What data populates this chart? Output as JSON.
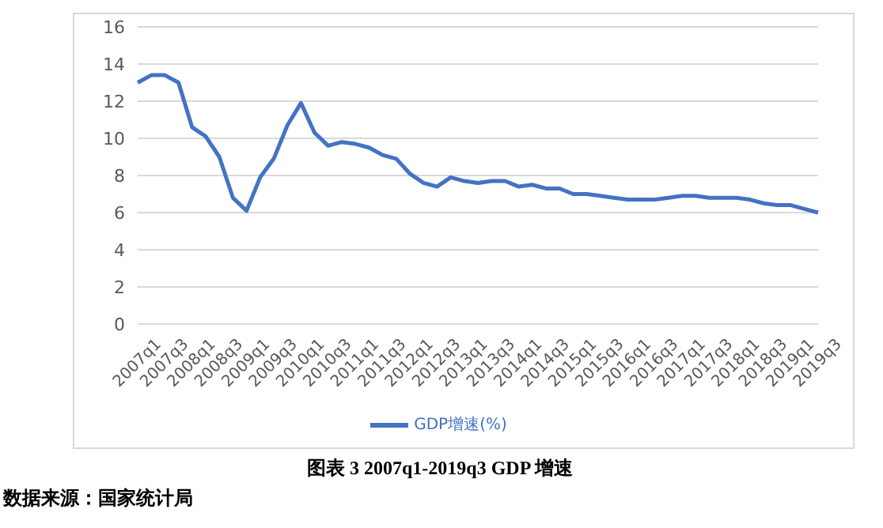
{
  "chart_data": {
    "type": "line",
    "categories": [
      "2007q1",
      null,
      "2007q3",
      null,
      "2008q1",
      null,
      "2008q3",
      null,
      "2009q1",
      null,
      "2009q3",
      null,
      "2010q1",
      null,
      "2010q3",
      null,
      "2011q1",
      null,
      "2011q3",
      null,
      "2012q1",
      null,
      "2012q3",
      null,
      "2013q1",
      null,
      "2013q3",
      null,
      "2014q1",
      null,
      "2014q3",
      null,
      "2015q1",
      null,
      "2015q3",
      null,
      "2016q1",
      null,
      "2016q3",
      null,
      "2017q1",
      null,
      "2017q3",
      null,
      "2018q1",
      null,
      "2018q3",
      null,
      "2019q1",
      null,
      "2019q3"
    ],
    "series": [
      {
        "name": "GDP增速(%)",
        "color": "#4472c4",
        "values": [
          13.0,
          13.4,
          13.4,
          13.0,
          10.6,
          10.1,
          9.0,
          6.8,
          6.1,
          7.9,
          8.9,
          10.7,
          11.9,
          10.3,
          9.6,
          9.8,
          9.7,
          9.5,
          9.1,
          8.9,
          8.1,
          7.6,
          7.4,
          7.9,
          7.7,
          7.6,
          7.7,
          7.7,
          7.4,
          7.5,
          7.3,
          7.3,
          7.0,
          7.0,
          6.9,
          6.8,
          6.7,
          6.7,
          6.7,
          6.8,
          6.9,
          6.9,
          6.8,
          6.8,
          6.8,
          6.7,
          6.5,
          6.4,
          6.4,
          6.2,
          6.0
        ]
      }
    ],
    "ylim": [
      0,
      16
    ],
    "yticks": [
      0,
      2,
      4,
      6,
      8,
      10,
      12,
      14,
      16
    ],
    "grid": "y",
    "legend": "bottom",
    "marker": "none",
    "line_style": "solid",
    "annotations": [
      "图表 3 2007q1-2019q3 GDP 增速",
      "数据来源：国家统计局"
    ]
  }
}
